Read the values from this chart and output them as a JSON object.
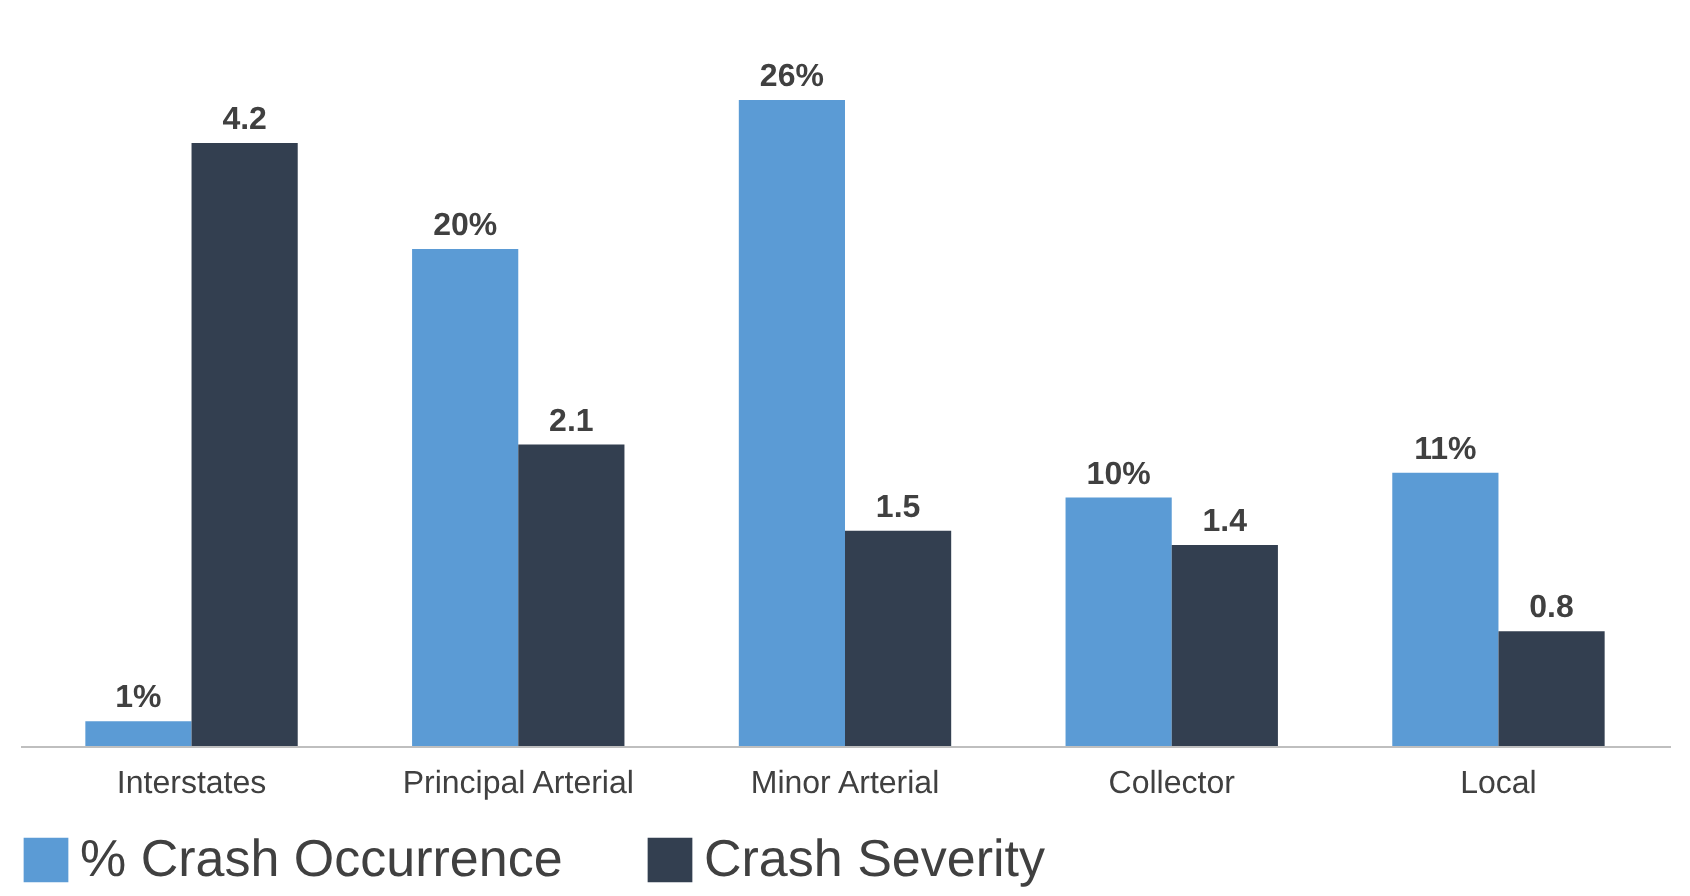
{
  "chart_data": {
    "type": "bar",
    "categories": [
      "Interstates",
      "Principal Arterial",
      "Minor Arterial",
      "Collector",
      "Local"
    ],
    "series": [
      {
        "name": "% Crash Occurrence",
        "color": "#5b9bd5",
        "values": [
          1,
          20,
          26,
          10,
          11
        ],
        "value_labels": [
          "1%",
          "20%",
          "26%",
          "10%",
          "11%"
        ]
      },
      {
        "name": "Crash Severity",
        "color": "#333f50",
        "axis": "y2",
        "values": [
          4.2,
          2.1,
          1.5,
          1.4,
          0.8
        ],
        "value_labels": [
          "4.2",
          "2.1",
          "1.5",
          "1.4",
          "0.8"
        ]
      }
    ],
    "tick_labels": "x",
    "legend": "bottom"
  }
}
